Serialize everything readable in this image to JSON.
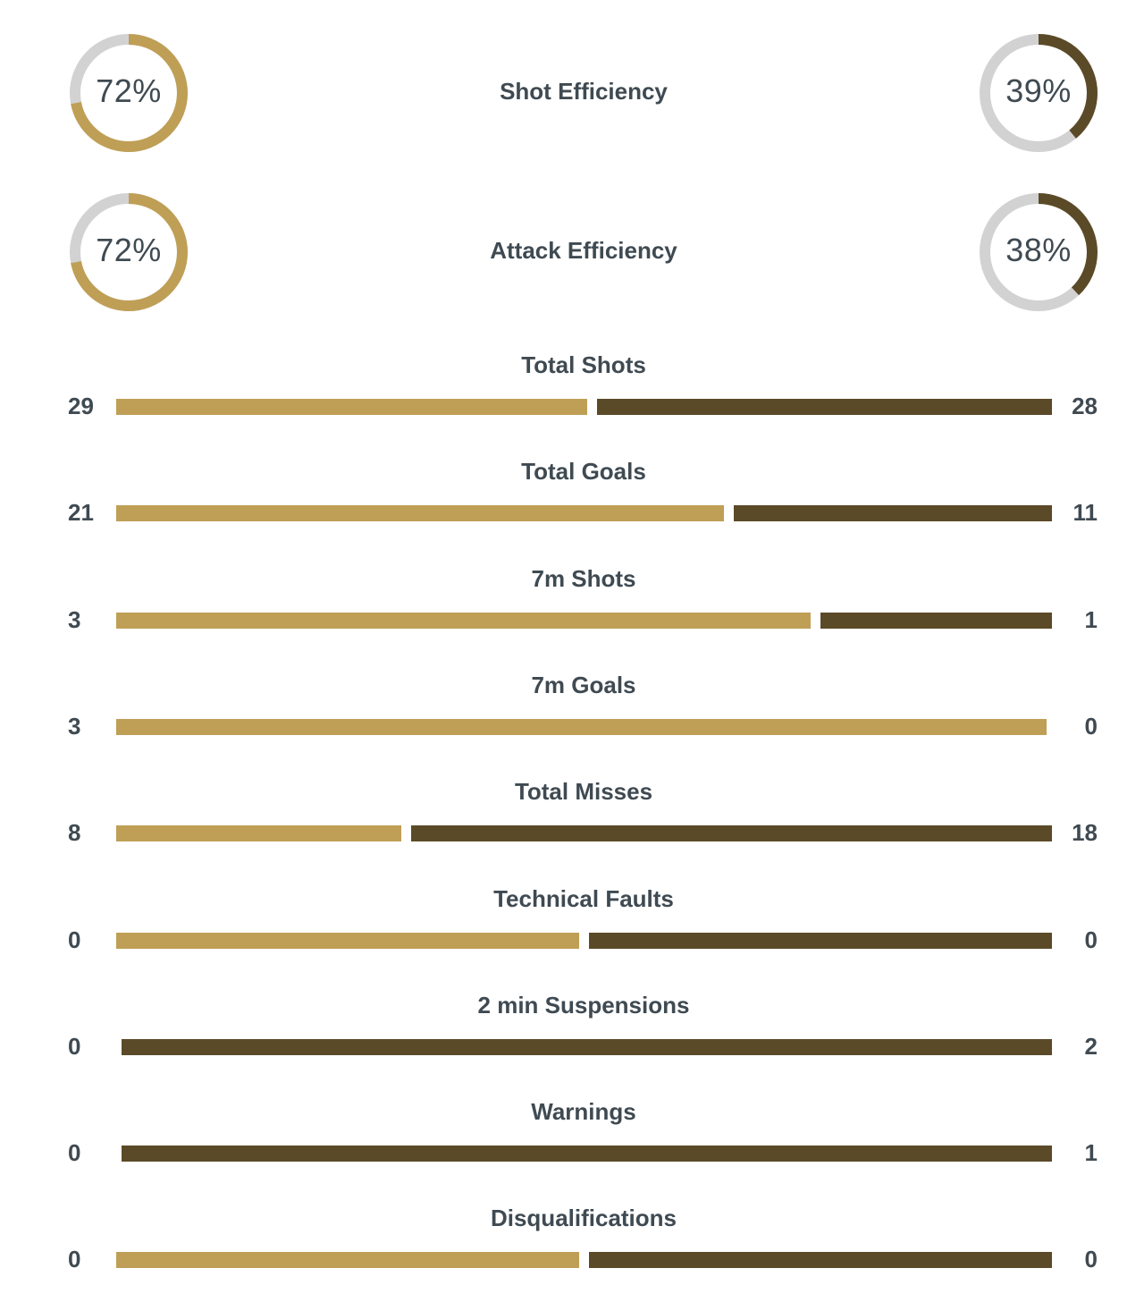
{
  "colors": {
    "home": "#bf9f56",
    "away": "#5b4a28",
    "track": "#d2d2d2",
    "text": "#3f4a52"
  },
  "chart_data": [
    {
      "type": "donut",
      "title": "Shot Efficiency",
      "home_value": 72,
      "away_value": 39,
      "home_label": "72%",
      "away_label": "39%"
    },
    {
      "type": "donut",
      "title": "Attack Efficiency",
      "home_value": 72,
      "away_value": 38,
      "home_label": "72%",
      "away_label": "38%"
    },
    {
      "type": "bar",
      "orientation": "horizontal-stacked",
      "categories": [
        "Total Shots",
        "Total Goals",
        "7m Shots",
        "7m Goals",
        "Total Misses",
        "Technical Faults",
        "2 min Suspensions",
        "Warnings",
        "Disqualifications"
      ],
      "series": [
        {
          "values": [
            29,
            21,
            3,
            3,
            8,
            0,
            0,
            0,
            0
          ]
        },
        {
          "values": [
            28,
            11,
            1,
            0,
            18,
            0,
            2,
            1,
            0
          ]
        }
      ],
      "display": {
        "home": [
          "29",
          "21",
          "3",
          "3",
          "8",
          "0",
          "0",
          "0",
          "0"
        ],
        "away": [
          "28",
          "11",
          "1",
          "0",
          "18",
          "0",
          "2",
          "1",
          "0"
        ]
      }
    }
  ]
}
